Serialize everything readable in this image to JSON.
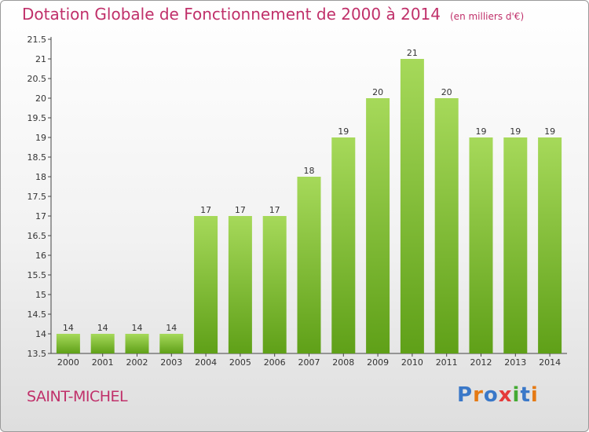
{
  "header": {
    "title": "Dotation Globale de Fonctionnement de 2000 à 2014",
    "unit": "(en milliers d'€)"
  },
  "footer": {
    "commune": "SAINT-MICHEL",
    "logo_text": "Proxiti"
  },
  "colors": {
    "accent": "#c0306a",
    "bar_light": "#a6d95a",
    "bar_dark": "#5fa018",
    "logo_letters": [
      "#3a78c8",
      "#e57a14",
      "#3a78c8",
      "#e53a3a",
      "#44aa33",
      "#3a78c8",
      "#e57a14"
    ]
  },
  "chart_data": {
    "type": "bar",
    "title": "Dotation Globale de Fonctionnement de 2000 à 2014",
    "subtitle": "(en milliers d'€)",
    "categories": [
      "2000",
      "2001",
      "2002",
      "2003",
      "2004",
      "2005",
      "2006",
      "2007",
      "2008",
      "2009",
      "2010",
      "2011",
      "2012",
      "2013",
      "2014"
    ],
    "values": [
      14,
      14,
      14,
      14,
      17,
      17,
      17,
      18,
      19,
      20,
      21,
      20,
      19,
      19,
      19
    ],
    "ylim": [
      13.5,
      21.5
    ],
    "yticks": [
      "13.5",
      "14",
      "14.5",
      "15",
      "15.5",
      "16",
      "16.5",
      "17",
      "17.5",
      "18",
      "18.5",
      "19",
      "19.5",
      "20",
      "20.5",
      "21",
      "21.5"
    ],
    "grid": false,
    "data_labels": true
  }
}
